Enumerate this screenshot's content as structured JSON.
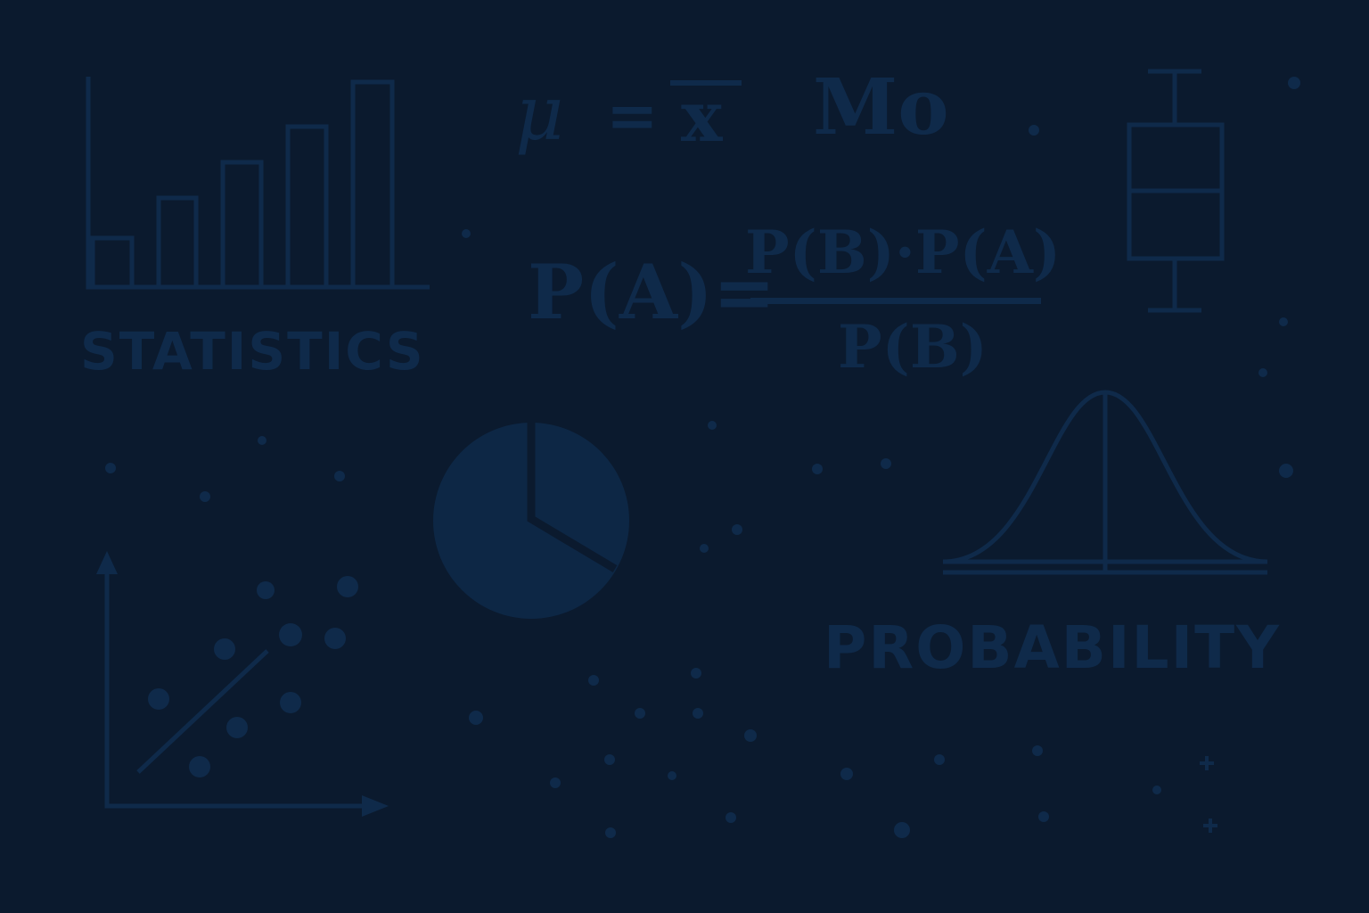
{
  "labels": {
    "statistics": "STATISTICS",
    "probability": "PROBABILITY"
  },
  "formulas": {
    "mean_mu": "μ",
    "mean_eq": "=",
    "mean_xbar": "x",
    "mode": "Mo",
    "bayes_lhs": "P(A)=",
    "bayes_numerator": "P(B)·P(A)",
    "bayes_denominator": "P(B)"
  },
  "colors": {
    "background": "#0b1a2e",
    "line": "#0f2a4a",
    "fill": "#0d2745"
  },
  "icons": [
    "bar-chart-icon",
    "box-plot-icon",
    "pie-chart-icon",
    "normal-distribution-icon",
    "scatter-plot-icon",
    "plus-icon"
  ]
}
